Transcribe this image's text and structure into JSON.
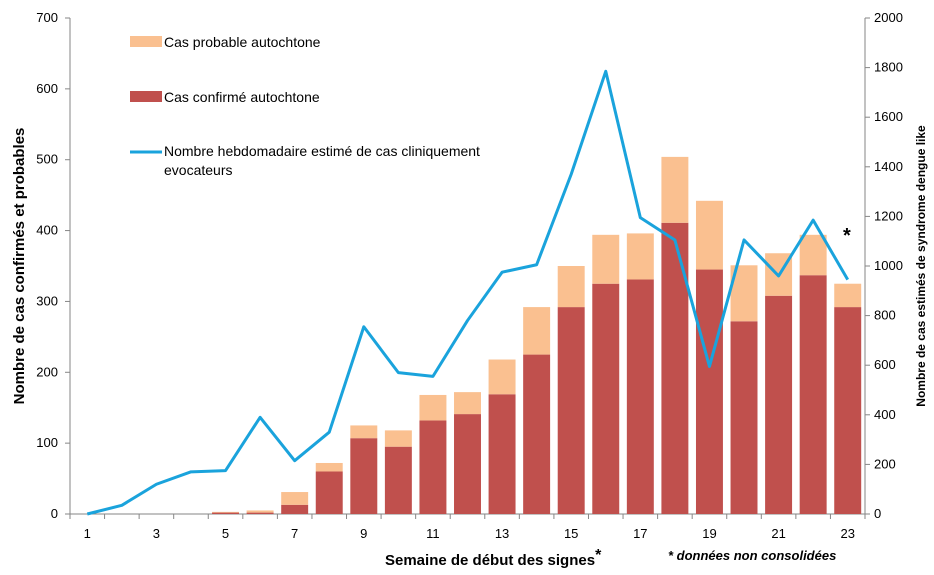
{
  "chart_data": {
    "type": "bar",
    "stacked": true,
    "x": [
      1,
      2,
      3,
      4,
      5,
      6,
      7,
      8,
      9,
      10,
      11,
      12,
      13,
      14,
      15,
      16,
      17,
      18,
      19,
      20,
      21,
      22,
      23
    ],
    "x_tick_labels": [
      "1",
      "3",
      "5",
      "7",
      "9",
      "11",
      "13",
      "15",
      "17",
      "19",
      "21",
      "23"
    ],
    "series": [
      {
        "name": "Cas confirmé autochtone",
        "type": "bar",
        "axis": "left",
        "color": "#c0504d",
        "values": [
          0,
          0,
          0,
          0,
          2,
          2,
          13,
          60,
          107,
          95,
          132,
          141,
          169,
          225,
          292,
          325,
          331,
          411,
          345,
          272,
          308,
          337,
          292
        ]
      },
      {
        "name": "Cas probable autochtone",
        "type": "bar",
        "axis": "left",
        "color": "#fac090",
        "values": [
          0,
          0,
          0,
          0,
          1,
          3,
          18,
          12,
          18,
          23,
          36,
          31,
          49,
          67,
          58,
          69,
          65,
          93,
          97,
          79,
          60,
          57,
          33
        ]
      },
      {
        "name_lines": [
          "Nombre hebdomadaire estimé de cas cliniquement",
          "evocateurs"
        ],
        "type": "line",
        "axis": "right",
        "color": "#1aa3dc",
        "values": [
          0,
          35,
          120,
          170,
          175,
          390,
          215,
          330,
          755,
          570,
          555,
          780,
          975,
          1005,
          1370,
          1785,
          1195,
          1105,
          595,
          1105,
          960,
          1185,
          945
        ]
      }
    ],
    "y_left": {
      "label": "Nombre de cas confirmés et probables",
      "lim": [
        0,
        700
      ],
      "ticks": [
        0,
        100,
        200,
        300,
        400,
        500,
        600,
        700
      ]
    },
    "y_right": {
      "label": "Nombre de cas estimés de syndrome dengue like",
      "lim": [
        0,
        2000
      ],
      "ticks": [
        0,
        200,
        400,
        600,
        800,
        1000,
        1200,
        1400,
        1600,
        1800,
        2000
      ]
    },
    "xlabel": "Semaine de début des signes",
    "xlabel_suffix": "*",
    "note": "* données non consolidées",
    "asterisk_marker": "*",
    "legend_position": "top-left",
    "grid": false
  }
}
